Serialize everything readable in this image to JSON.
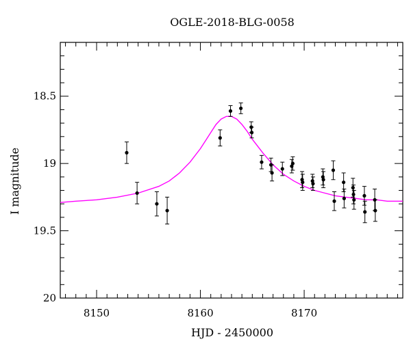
{
  "chart_data": {
    "type": "scatter",
    "title": "OGLE-2018-BLG-0058",
    "xlabel": "HJD - 2450000",
    "ylabel": "I magnitude",
    "xlim": [
      8146.5,
      8179.5
    ],
    "ylim": [
      20.0,
      18.1
    ],
    "y_inverted": true,
    "grid": false,
    "x_ticks": [
      8150,
      8160,
      8170
    ],
    "x_tick_labels": [
      "8150",
      "8160",
      "8170"
    ],
    "y_ticks": [
      18.5,
      19.0,
      19.5,
      20.0
    ],
    "y_tick_labels": [
      "18.5",
      "19",
      "19.5",
      "20"
    ],
    "x_minor_step": 1,
    "y_minor_step": 0.1,
    "colors": {
      "points": "#000000",
      "model": "#ff00ff"
    },
    "points": [
      {
        "x": 8152.9,
        "y": 18.92,
        "err": 0.08
      },
      {
        "x": 8153.9,
        "y": 19.22,
        "err": 0.08
      },
      {
        "x": 8155.8,
        "y": 19.3,
        "err": 0.09
      },
      {
        "x": 8156.8,
        "y": 19.35,
        "err": 0.1
      },
      {
        "x": 8161.9,
        "y": 18.81,
        "err": 0.06
      },
      {
        "x": 8162.9,
        "y": 18.61,
        "err": 0.04
      },
      {
        "x": 8163.9,
        "y": 18.59,
        "err": 0.04
      },
      {
        "x": 8164.9,
        "y": 18.73,
        "err": 0.04
      },
      {
        "x": 8164.95,
        "y": 18.77,
        "err": 0.04
      },
      {
        "x": 8165.9,
        "y": 18.99,
        "err": 0.05
      },
      {
        "x": 8166.8,
        "y": 19.01,
        "err": 0.05
      },
      {
        "x": 8166.9,
        "y": 19.07,
        "err": 0.06
      },
      {
        "x": 8167.9,
        "y": 19.04,
        "err": 0.05
      },
      {
        "x": 8168.8,
        "y": 19.02,
        "err": 0.05
      },
      {
        "x": 8168.9,
        "y": 19.0,
        "err": 0.05
      },
      {
        "x": 8169.8,
        "y": 19.12,
        "err": 0.06
      },
      {
        "x": 8169.85,
        "y": 19.14,
        "err": 0.06
      },
      {
        "x": 8170.8,
        "y": 19.13,
        "err": 0.05
      },
      {
        "x": 8170.85,
        "y": 19.15,
        "err": 0.05
      },
      {
        "x": 8171.8,
        "y": 19.1,
        "err": 0.06
      },
      {
        "x": 8171.85,
        "y": 19.12,
        "err": 0.06
      },
      {
        "x": 8172.8,
        "y": 19.05,
        "err": 0.07
      },
      {
        "x": 8172.9,
        "y": 19.28,
        "err": 0.07
      },
      {
        "x": 8173.8,
        "y": 19.14,
        "err": 0.07
      },
      {
        "x": 8173.85,
        "y": 19.26,
        "err": 0.07
      },
      {
        "x": 8174.7,
        "y": 19.18,
        "err": 0.07
      },
      {
        "x": 8174.75,
        "y": 19.23,
        "err": 0.07
      },
      {
        "x": 8174.8,
        "y": 19.27,
        "err": 0.07
      },
      {
        "x": 8175.8,
        "y": 19.24,
        "err": 0.07
      },
      {
        "x": 8175.85,
        "y": 19.36,
        "err": 0.08
      },
      {
        "x": 8176.8,
        "y": 19.27,
        "err": 0.08
      },
      {
        "x": 8176.85,
        "y": 19.35,
        "err": 0.08
      }
    ],
    "model": {
      "x": [
        8146.5,
        8148,
        8150,
        8152,
        8154,
        8156,
        8157,
        8158,
        8159,
        8160,
        8160.5,
        8161,
        8161.5,
        8162,
        8162.5,
        8163,
        8163.5,
        8164,
        8164.5,
        8165,
        8166,
        8167,
        8168,
        8169,
        8170,
        8171,
        8172,
        8173,
        8174,
        8175,
        8176,
        8177,
        8178,
        8179.5
      ],
      "y": [
        19.29,
        19.28,
        19.27,
        19.25,
        19.22,
        19.17,
        19.13,
        19.07,
        18.99,
        18.89,
        18.83,
        18.77,
        18.71,
        18.67,
        18.65,
        18.65,
        18.67,
        18.71,
        18.76,
        18.82,
        18.92,
        19.01,
        19.08,
        19.13,
        19.17,
        19.2,
        19.22,
        19.24,
        19.25,
        19.26,
        19.27,
        19.27,
        19.28,
        19.28
      ]
    }
  }
}
